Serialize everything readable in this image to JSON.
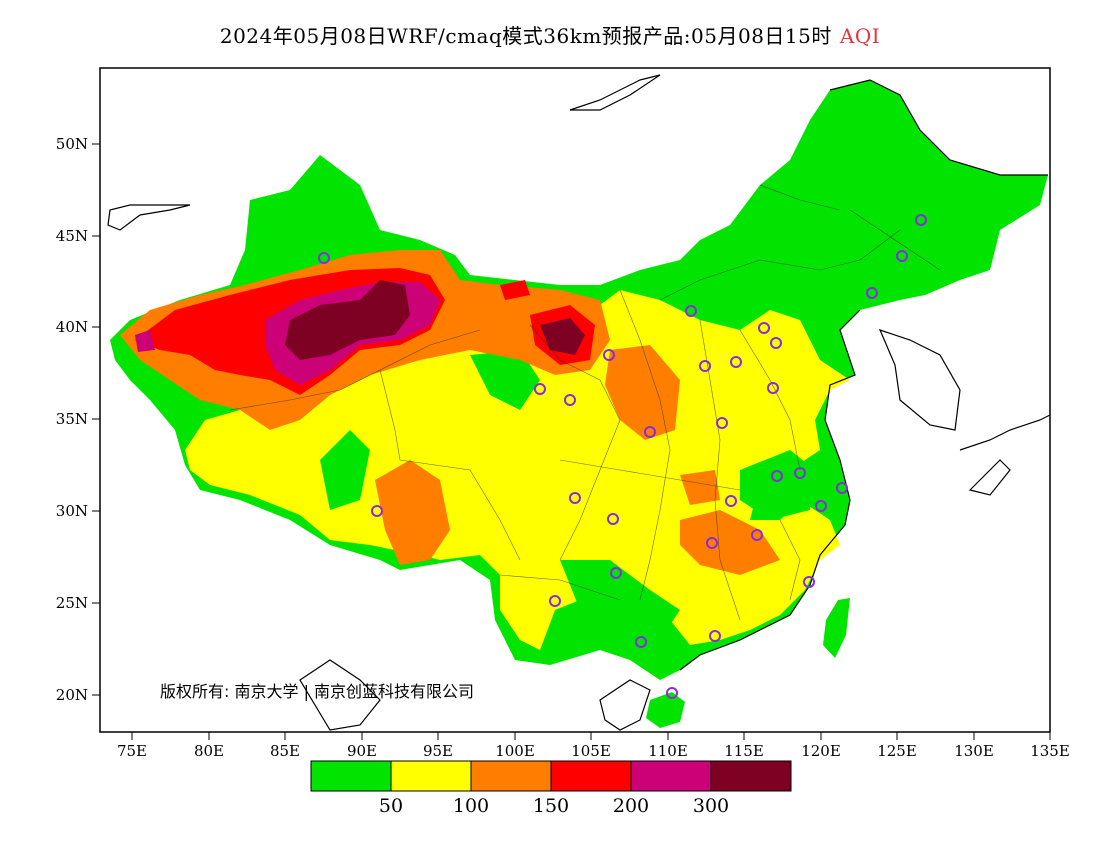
{
  "title": {
    "main": "2024年05月08日WRF/cmaq模式36km预报产品:05月08日15时",
    "variable": "AQI"
  },
  "axes": {
    "lon_ticks": [
      "75E",
      "80E",
      "85E",
      "90E",
      "95E",
      "100E",
      "105E",
      "110E",
      "115E",
      "120E",
      "125E",
      "130E",
      "135E"
    ],
    "lat_ticks": [
      "50N",
      "45N",
      "40N",
      "35N",
      "30N",
      "25N",
      "20N"
    ]
  },
  "colorbar": {
    "colors": [
      "#00e400",
      "#ffff00",
      "#ff7e00",
      "#ff0000",
      "#cc0077",
      "#7e0023"
    ],
    "labels": [
      "50",
      "100",
      "150",
      "200",
      "300"
    ]
  },
  "copyright": "版权所有: 南京大学 | 南京创蓝科技有限公司",
  "legend_colors": {
    "marker": "#8a2be2",
    "border": "#000000"
  }
}
